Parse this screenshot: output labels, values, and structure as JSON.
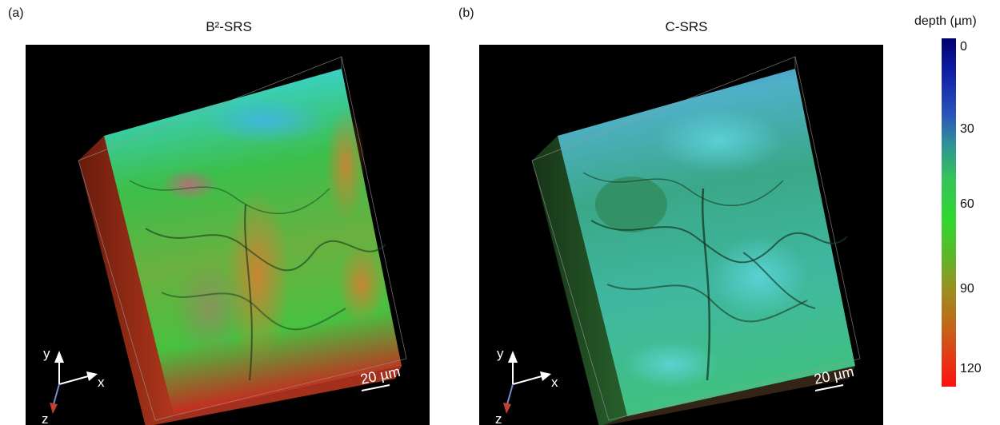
{
  "figure": {
    "panel_a": {
      "tag": "(a)",
      "title": "B²-SRS",
      "scale_bar": "20 µm",
      "axes": {
        "x": "x",
        "y": "y",
        "z": "z"
      }
    },
    "panel_b": {
      "tag": "(b)",
      "title": "C-SRS",
      "scale_bar": "20 µm",
      "axes": {
        "x": "x",
        "y": "y",
        "z": "z"
      }
    },
    "colorbar": {
      "title": "depth (µm)",
      "ticks": [
        "0",
        "30",
        "60",
        "90",
        "120"
      ],
      "colors": [
        "#00006e",
        "#2a55b8",
        "#36c25a",
        "#9a9020",
        "#ff1010"
      ]
    }
  }
}
